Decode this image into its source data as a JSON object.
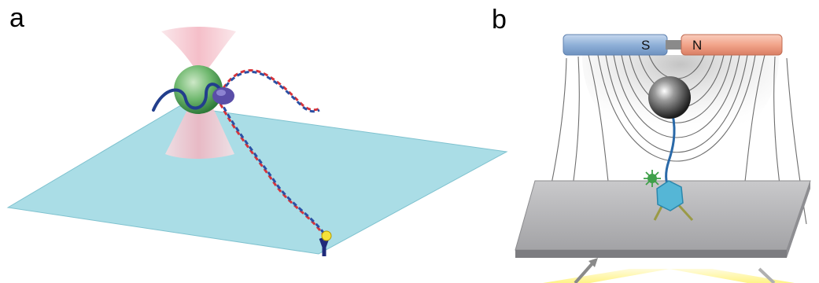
{
  "panels": {
    "a": {
      "label": "a"
    },
    "b": {
      "label": "b",
      "magnet": {
        "south_label": "S",
        "north_label": "N"
      }
    }
  },
  "colors": {
    "surface": "#aadde6",
    "dna_red": "#d8343a",
    "dna_blue": "#2b4fa3",
    "bead_green": "#3c9a4c",
    "laser_pink": "#f7c7cf",
    "protein_purple": "#5a4ea8",
    "anchor_yellow": "#f5e23a",
    "magnet_blue": "#8fb0d8",
    "magnet_red": "#f2a48a",
    "magnetic_bead": "#3a3a3a",
    "field_lines": "#555555",
    "slide_grey": "#a9aaad",
    "light_yellow": "#fff6a0",
    "protein_cyan": "#55b6d6",
    "fluorophore_green": "#3fa04a"
  }
}
